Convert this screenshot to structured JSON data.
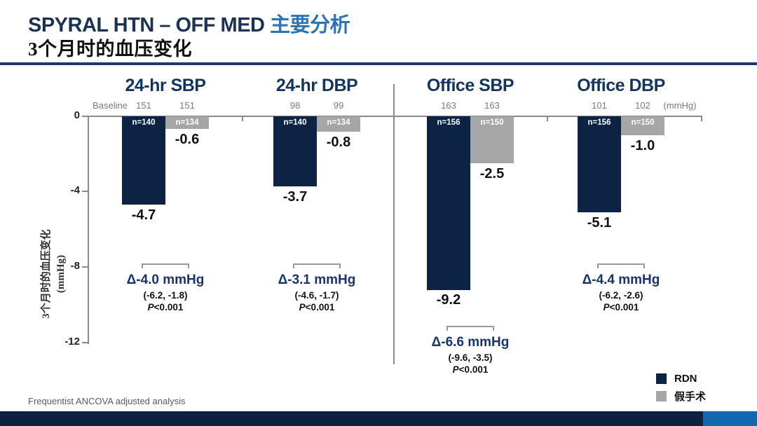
{
  "slide": {
    "title_en": "SPYRAL HTN – OFF MED",
    "title_zh": "主要分析",
    "subtitle": "3个月时的血压变化",
    "footnote": "Frequentist ANCOVA adjusted analysis"
  },
  "axis": {
    "baseline_label": "Baseline",
    "unit_label": "(mmHg)",
    "ticks": [
      "0",
      "-4",
      "-8",
      "-12"
    ],
    "y_label_line1": "3个月时的血压变化",
    "y_label_line2": "(mmHg)"
  },
  "legend": {
    "rdn": "RDN",
    "sham": "假手术"
  },
  "groups": [
    {
      "title": "24-hr SBP",
      "rdn": {
        "baseline": "151",
        "n": "n=140",
        "value": "-4.7"
      },
      "sham": {
        "baseline": "151",
        "n": "n=134",
        "value": "-0.6"
      },
      "delta": "Δ-4.0 mmHg",
      "ci": "(-6.2, -1.8)",
      "p_label": "P",
      "p_value": "<0.001"
    },
    {
      "title": "24-hr DBP",
      "rdn": {
        "baseline": "98",
        "n": "n=140",
        "value": "-3.7"
      },
      "sham": {
        "baseline": "99",
        "n": "n=134",
        "value": "-0.8"
      },
      "delta": "Δ-3.1 mmHg",
      "ci": "(-4.6, -1.7)",
      "p_label": "P",
      "p_value": "<0.001"
    },
    {
      "title": "Office SBP",
      "rdn": {
        "baseline": "163",
        "n": "n=156",
        "value": "-9.2"
      },
      "sham": {
        "baseline": "163",
        "n": "n=150",
        "value": "-2.5"
      },
      "delta": "Δ-6.6 mmHg",
      "ci": "(-9.6, -3.5)",
      "p_label": "P",
      "p_value": "<0.001"
    },
    {
      "title": "Office DBP",
      "rdn": {
        "baseline": "101",
        "n": "n=156",
        "value": "-5.1"
      },
      "sham": {
        "baseline": "102",
        "n": "n=150",
        "value": "-1.0"
      },
      "delta": "Δ-4.4 mmHg",
      "ci": "(-6.2, -2.6)",
      "p_label": "P",
      "p_value": "<0.001"
    }
  ],
  "colors": {
    "rdn_bar": "#0c2344",
    "sham_bar": "#a6a6a6",
    "title_navy": "#1c3253",
    "accent_blue": "#2e74b5",
    "delta_navy": "#17356b",
    "footer_navy": "#0e2240",
    "footer_blue": "#1268ae"
  },
  "chart_data": {
    "type": "bar",
    "title": "SPYRAL HTN – OFF MED 主要分析 · 3个月时的血压变化",
    "categories": [
      "24-hr SBP",
      "24-hr DBP",
      "Office SBP",
      "Office DBP"
    ],
    "series": [
      {
        "name": "RDN",
        "values": [
          -4.7,
          -3.7,
          -9.2,
          -5.1
        ],
        "n": [
          140,
          140,
          156,
          156
        ],
        "baselines": [
          151,
          98,
          163,
          101
        ]
      },
      {
        "name": "假手术",
        "values": [
          -0.6,
          -0.8,
          -2.5,
          -1.0
        ],
        "n": [
          134,
          134,
          150,
          150
        ],
        "baselines": [
          151,
          99,
          163,
          102
        ]
      }
    ],
    "differences": [
      {
        "delta_mmHg": -4.0,
        "ci_95": [
          -6.2,
          -1.8
        ],
        "p": "<0.001"
      },
      {
        "delta_mmHg": -3.1,
        "ci_95": [
          -4.6,
          -1.7
        ],
        "p": "<0.001"
      },
      {
        "delta_mmHg": -6.6,
        "ci_95": [
          -9.6,
          -3.5
        ],
        "p": "<0.001"
      },
      {
        "delta_mmHg": -4.4,
        "ci_95": [
          -6.2,
          -2.6
        ],
        "p": "<0.001"
      }
    ],
    "ylabel": "3个月时的血压变化 (mmHg)",
    "unit": "mmHg",
    "ylim": [
      -12,
      0
    ],
    "yticks": [
      0,
      -4,
      -8,
      -12
    ],
    "grid": false,
    "legend_position": "bottom-right"
  }
}
